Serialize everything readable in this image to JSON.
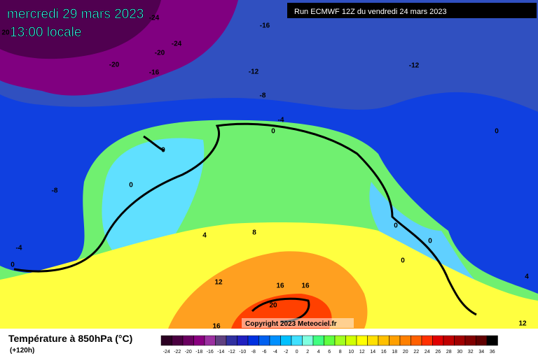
{
  "header": {
    "date": "mercredi 29 mars 2023",
    "time": "13:00 locale",
    "run": "Run ECMWF 12Z du vendredi 24 mars 2023"
  },
  "map": {
    "contour_labels": [
      "-24",
      "20",
      "-16",
      "-20",
      "-24",
      "-20",
      "-16",
      "-12",
      "-12",
      "-8",
      "-4",
      "0",
      "0",
      "0",
      "-8",
      "4",
      "8",
      "-4",
      "0",
      "12",
      "16",
      "16",
      "20",
      "0",
      "0",
      "0",
      "0",
      "4",
      "12",
      "16"
    ],
    "copyright": "Copyright 2023 Meteociel.fr"
  },
  "legend": {
    "title": "Température à 850hPa (°C)",
    "lead": "(+120h)",
    "labels": [
      -24,
      -22,
      -20,
      -18,
      -16,
      -14,
      -12,
      -10,
      -8,
      -6,
      -4,
      -2,
      0,
      2,
      4,
      6,
      8,
      10,
      12,
      14,
      16,
      18,
      20,
      22,
      24,
      26,
      28,
      30,
      32,
      34,
      36
    ],
    "colors": [
      "#2b0022",
      "#4a0040",
      "#6a0060",
      "#8a0080",
      "#9b30a0",
      "#604080",
      "#3030a0",
      "#2020c0",
      "#0030e0",
      "#0060f0",
      "#0090ff",
      "#00c0ff",
      "#40e0ff",
      "#80ffe0",
      "#40ff80",
      "#60ff40",
      "#a0ff20",
      "#d0ff00",
      "#ffff00",
      "#ffe000",
      "#ffc000",
      "#ffa000",
      "#ff8000",
      "#ff6000",
      "#ff3000",
      "#e00000",
      "#c00000",
      "#a00000",
      "#800000",
      "#600000",
      "#000000"
    ]
  }
}
